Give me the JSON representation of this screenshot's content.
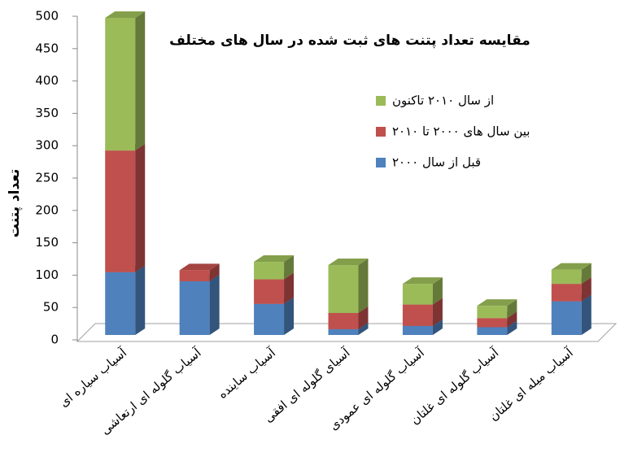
{
  "chart_data": {
    "type": "stacked-bar-3d",
    "title": "مقایسه تعداد پتنت های ثبت شده در سال های مختلف",
    "y_label": "تعداد پتنت",
    "categories": [
      "آسیاب سیاره ای",
      "آسیاب گلوله ای ارتعاشی",
      "آسیاب ساینده",
      "آسیای گلوله ای افقی",
      "آسیاب گلوله ای عمودی",
      "آسیاب گلوله ای غلتان",
      "آسیاب میله ای غلتان"
    ],
    "series": [
      {
        "name": "قبل از سال ۲۰۰۰",
        "color": "#4f81bd",
        "values": [
          97,
          83,
          48,
          9,
          14,
          12,
          52
        ]
      },
      {
        "name": "بین سال های ۲۰۰۰ تا ۲۰۱۰",
        "color": "#c0504d",
        "values": [
          188,
          17,
          38,
          25,
          33,
          14,
          27
        ]
      },
      {
        "name": "از سال ۲۰۱۰ تاکنون",
        "color": "#9bbb59",
        "values": [
          205,
          0,
          27,
          74,
          32,
          19,
          22
        ]
      }
    ],
    "ylim": [
      0,
      500
    ],
    "yticks": [
      0,
      50,
      100,
      150,
      200,
      250,
      300,
      350,
      400,
      450,
      500
    ]
  }
}
